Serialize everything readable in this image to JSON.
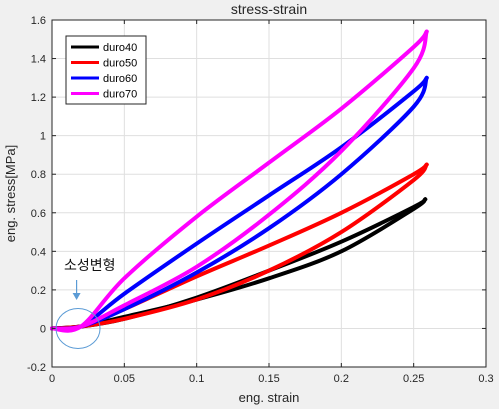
{
  "chart_data": {
    "type": "line",
    "title": "stress-strain",
    "xlabel": "eng. strain",
    "ylabel": "eng. stress[MPa]",
    "xlim": [
      0,
      0.3
    ],
    "ylim": [
      -0.2,
      1.6
    ],
    "xticks": [
      0,
      0.05,
      0.1,
      0.15,
      0.2,
      0.25,
      0.3
    ],
    "xtick_labels": [
      "0",
      "0.05",
      "0.1",
      "0.15",
      "0.2",
      "0.25",
      "0.3"
    ],
    "yticks": [
      -0.2,
      0,
      0.2,
      0.4,
      0.6,
      0.8,
      1,
      1.2,
      1.4,
      1.6
    ],
    "ytick_labels": [
      "-0.2",
      "0",
      "0.2",
      "0.4",
      "0.6",
      "0.8",
      "1",
      "1.2",
      "1.4",
      "1.6"
    ],
    "grid": true,
    "legend_position": "top-left",
    "series": [
      {
        "name": "duro40",
        "color": "#000000",
        "loading": [
          [
            0,
            0
          ],
          [
            0.02,
            0.01
          ],
          [
            0.05,
            0.06
          ],
          [
            0.1,
            0.15
          ],
          [
            0.15,
            0.26
          ],
          [
            0.2,
            0.4
          ],
          [
            0.25,
            0.62
          ],
          [
            0.258,
            0.67
          ]
        ],
        "unloading": [
          [
            0.258,
            0.67
          ],
          [
            0.25,
            0.63
          ],
          [
            0.2,
            0.45
          ],
          [
            0.15,
            0.3
          ],
          [
            0.1,
            0.16
          ],
          [
            0.05,
            0.05
          ],
          [
            0.02,
            0.01
          ],
          [
            0,
            0
          ]
        ]
      },
      {
        "name": "duro50",
        "color": "#ff0000",
        "loading": [
          [
            0,
            0
          ],
          [
            0.02,
            0.01
          ],
          [
            0.05,
            0.1
          ],
          [
            0.1,
            0.27
          ],
          [
            0.15,
            0.43
          ],
          [
            0.2,
            0.6
          ],
          [
            0.25,
            0.8
          ],
          [
            0.259,
            0.85
          ]
        ],
        "unloading": [
          [
            0.259,
            0.85
          ],
          [
            0.25,
            0.77
          ],
          [
            0.2,
            0.5
          ],
          [
            0.15,
            0.3
          ],
          [
            0.1,
            0.15
          ],
          [
            0.05,
            0.05
          ],
          [
            0.02,
            0.01
          ],
          [
            0,
            0
          ]
        ]
      },
      {
        "name": "duro60",
        "color": "#0000ff",
        "loading": [
          [
            0,
            0
          ],
          [
            0.02,
            0.01
          ],
          [
            0.05,
            0.18
          ],
          [
            0.1,
            0.44
          ],
          [
            0.15,
            0.69
          ],
          [
            0.2,
            0.94
          ],
          [
            0.25,
            1.23
          ],
          [
            0.259,
            1.3
          ]
        ],
        "unloading": [
          [
            0.259,
            1.3
          ],
          [
            0.25,
            1.15
          ],
          [
            0.2,
            0.8
          ],
          [
            0.15,
            0.52
          ],
          [
            0.1,
            0.29
          ],
          [
            0.05,
            0.1
          ],
          [
            0.02,
            0.01
          ],
          [
            0,
            0
          ]
        ]
      },
      {
        "name": "duro70",
        "color": "#ff00ff",
        "loading": [
          [
            0,
            0
          ],
          [
            0.02,
            0.01
          ],
          [
            0.05,
            0.26
          ],
          [
            0.1,
            0.58
          ],
          [
            0.15,
            0.86
          ],
          [
            0.2,
            1.14
          ],
          [
            0.25,
            1.46
          ],
          [
            0.259,
            1.54
          ]
        ],
        "unloading": [
          [
            0.259,
            1.54
          ],
          [
            0.25,
            1.35
          ],
          [
            0.2,
            0.92
          ],
          [
            0.15,
            0.59
          ],
          [
            0.1,
            0.32
          ],
          [
            0.05,
            0.12
          ],
          [
            0.02,
            0.01
          ],
          [
            0,
            0
          ]
        ]
      }
    ],
    "annotations": [
      {
        "text": "소성변형",
        "arrow_from": [
          0.018,
          -0.185
        ],
        "arrow_to": [
          0.016,
          0.035
        ],
        "ellipse_center": [
          0.018,
          0.0
        ]
      }
    ]
  }
}
